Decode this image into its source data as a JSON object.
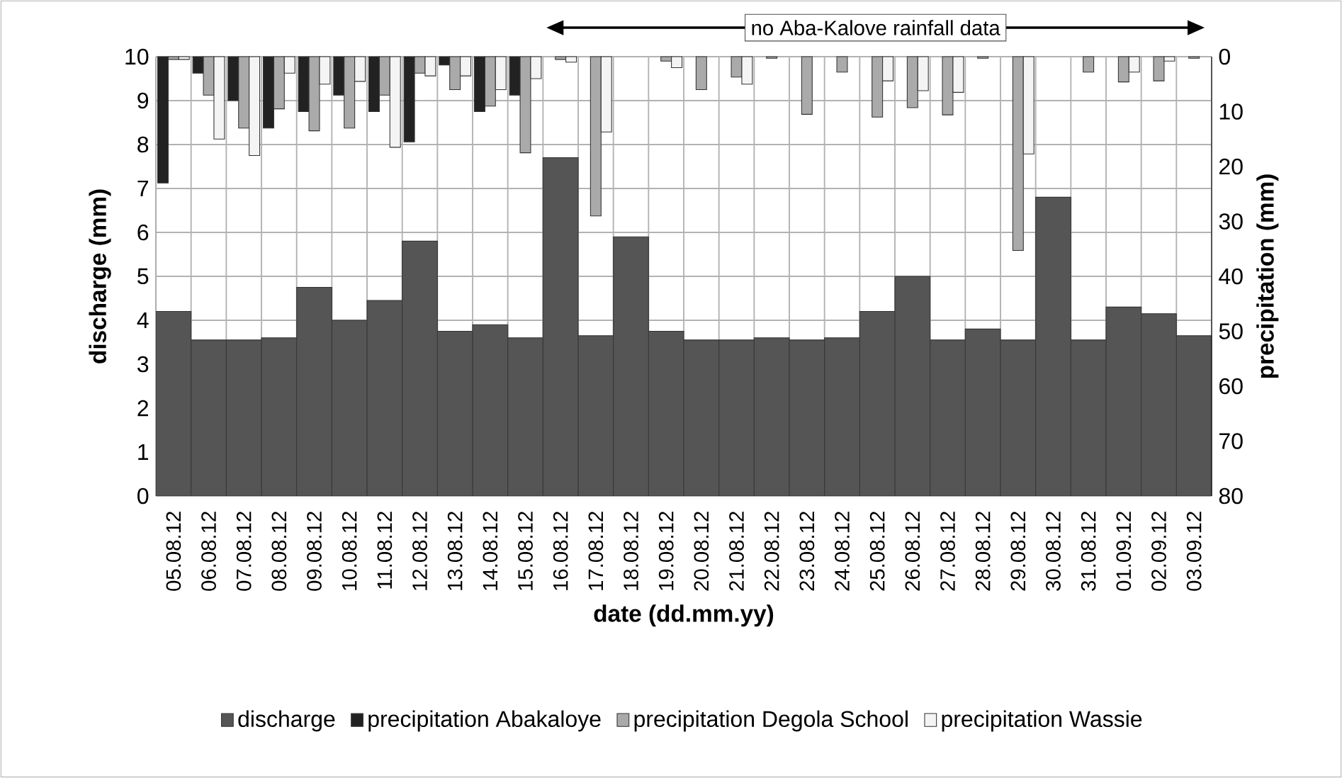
{
  "chart_data": {
    "type": "bar",
    "categories": [
      "05.08.12",
      "06.08.12",
      "07.08.12",
      "08.08.12",
      "09.08.12",
      "10.08.12",
      "11.08.12",
      "12.08.12",
      "13.08.12",
      "14.08.12",
      "15.08.12",
      "16.08.12",
      "17.08.12",
      "18.08.12",
      "19.08.12",
      "20.08.12",
      "21.08.12",
      "22.08.12",
      "23.08.12",
      "24.08.12",
      "25.08.12",
      "26.08.12",
      "27.08.12",
      "28.08.12",
      "29.08.12",
      "30.08.12",
      "31.08.12",
      "01.09.12",
      "02.09.12",
      "03.09.12"
    ],
    "xlabel": "date (dd.mm.yy)",
    "ylabel": "discharge (mm)",
    "y2label": "precipitation  (mm)",
    "ylim": [
      0,
      10
    ],
    "yticks": [
      0,
      1,
      2,
      3,
      4,
      5,
      6,
      7,
      8,
      9,
      10
    ],
    "y2lim": [
      80,
      0
    ],
    "y2ticks": [
      0,
      10,
      20,
      30,
      40,
      50,
      60,
      70,
      80
    ],
    "series": [
      {
        "name": "discharge",
        "color": "#555555",
        "values": [
          4.2,
          3.55,
          3.55,
          3.6,
          4.75,
          4.0,
          4.45,
          5.8,
          3.75,
          3.9,
          3.6,
          7.7,
          3.65,
          5.9,
          3.75,
          3.55,
          3.55,
          3.6,
          3.55,
          3.6,
          4.2,
          5.0,
          3.55,
          3.8,
          3.55,
          6.8,
          3.55,
          4.3,
          4.15,
          3.65
        ]
      },
      {
        "name": "precipitation Abakaloye",
        "color": "#222222",
        "axis": "y2",
        "values": [
          23,
          3,
          8,
          13,
          10,
          7,
          10,
          15.5,
          1.5,
          10,
          7,
          null,
          null,
          null,
          null,
          null,
          null,
          null,
          null,
          null,
          null,
          null,
          null,
          null,
          null,
          null,
          null,
          null,
          null,
          null
        ]
      },
      {
        "name": "precipitation Degola School",
        "color": "#aaaaaa",
        "axis": "y2",
        "values": [
          0.5,
          7,
          13,
          9.5,
          13.5,
          13,
          7,
          3,
          6,
          9,
          17.5,
          0.5,
          29,
          null,
          0.8,
          6,
          3.7,
          0.3,
          10.5,
          2.8,
          11,
          9.3,
          10.6,
          0.3,
          35.3,
          null,
          2.8,
          4.6,
          4.4,
          0.3
        ]
      },
      {
        "name": "precipitation Wassie",
        "color": "#f4f4f4",
        "axis": "y2",
        "values": [
          0.5,
          15,
          18,
          3,
          5,
          4.5,
          16.5,
          3.5,
          3.5,
          6,
          4,
          1,
          13.7,
          null,
          2,
          null,
          5,
          null,
          null,
          null,
          4.4,
          6.2,
          6.5,
          null,
          17.7,
          null,
          null,
          2.8,
          0.8,
          null
        ]
      }
    ],
    "grid": true,
    "legend": "bottom",
    "annotations": [
      "no Aba-Kalove rainfall data"
    ]
  }
}
